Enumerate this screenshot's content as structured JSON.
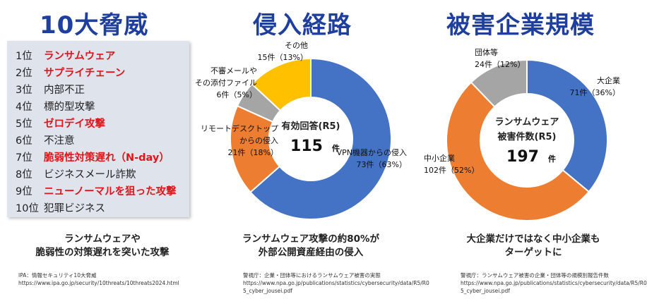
{
  "panel1": {
    "title": "10大脅威",
    "items": [
      {
        "rank": "1位",
        "label": "ランサムウェア",
        "highlight": true
      },
      {
        "rank": "2位",
        "label": "サプライチェーン",
        "highlight": true
      },
      {
        "rank": "3位",
        "label": "内部不正",
        "highlight": false
      },
      {
        "rank": "4位",
        "label": "標的型攻撃",
        "highlight": false
      },
      {
        "rank": "5位",
        "label": "ゼロデイ攻撃",
        "highlight": true
      },
      {
        "rank": "6位",
        "label": "不注意",
        "highlight": false
      },
      {
        "rank": "7位",
        "label": "脆弱性対策遅れ（N-day）",
        "highlight": true
      },
      {
        "rank": "8位",
        "label": "ビジネスメール詐欺",
        "highlight": false
      },
      {
        "rank": "9位",
        "label": "ニューノーマルを狙った攻撃",
        "highlight": true
      },
      {
        "rank": "10位",
        "label": "犯罪ビジネス",
        "highlight": false
      }
    ],
    "caption_line1": "ランサムウェアや",
    "caption_line2": "脆弱性の対策遅れを突いた攻撃",
    "source_line1": "IPA：情報セキュリティ10大脅威",
    "source_line2": "https://www.ipa.go.jp/security/10threats/10threats2024.html"
  },
  "panel2": {
    "title": "侵入経路",
    "caption_line1": "ランサムウェア攻撃の約80%が",
    "caption_line2": "外部公開資産経由の侵入",
    "source_line1": "警視庁：企業・団体等におけるランサムウェア被害の実態",
    "source_line2": "https://www.npa.go.jp/publications/statistics/cybersecurity/data/R5/R0",
    "source_line3": "5_cyber_jousei.pdf"
  },
  "panel3": {
    "title": "被害企業規模",
    "caption_line1": "大企業だけではなく中小企業も",
    "caption_line2": "ターゲットに",
    "source_line1": "警視庁：ランサムウェア被害の企業・団体等の規模別報告件数",
    "source_line2": "https://www.npa.go.jp/publications/statistics/cybersecurity/data/R5/R0",
    "source_line3": "5_cyber_jousei.pdf"
  },
  "colors": {
    "title": "#1f3f9e",
    "highlight": "#e0151b",
    "blue": "#4472c4",
    "orange": "#ed7d31",
    "gray": "#a5a5a5",
    "yellow": "#ffc000"
  },
  "chart_data": [
    {
      "type": "pie",
      "variant": "donut",
      "center_line1": "有効回答(R5)",
      "center_value": "115",
      "center_unit": "件",
      "total": 115,
      "series": [
        {
          "name_lines": [
            "VPN機器からの侵入"
          ],
          "count_label": "73件（63%）",
          "value": 73,
          "color": "#4472c4"
        },
        {
          "name_lines": [
            "リモートデスクトップ",
            "からの侵入"
          ],
          "count_label": "21件（18%）",
          "value": 21,
          "color": "#ed7d31"
        },
        {
          "name_lines": [
            "不審メールや",
            "その添付ファイル"
          ],
          "count_label": "6件（5%）",
          "value": 6,
          "color": "#a5a5a5"
        },
        {
          "name_lines": [
            "その他"
          ],
          "count_label": "15件（13%）",
          "value": 15,
          "color": "#ffc000"
        }
      ]
    },
    {
      "type": "pie",
      "variant": "donut",
      "center_line1": "ランサムウェア",
      "center_line2": "被害件数(R5)",
      "center_value": "197",
      "center_unit": "件",
      "total": 197,
      "series": [
        {
          "name_lines": [
            "大企業"
          ],
          "count_label": "71件（36%）",
          "value": 71,
          "color": "#4472c4"
        },
        {
          "name_lines": [
            "中小企業"
          ],
          "count_label": "102件（52%）",
          "value": 102,
          "color": "#ed7d31"
        },
        {
          "name_lines": [
            "団体等"
          ],
          "count_label": "24件（12%）",
          "value": 24,
          "color": "#a5a5a5"
        }
      ]
    }
  ]
}
